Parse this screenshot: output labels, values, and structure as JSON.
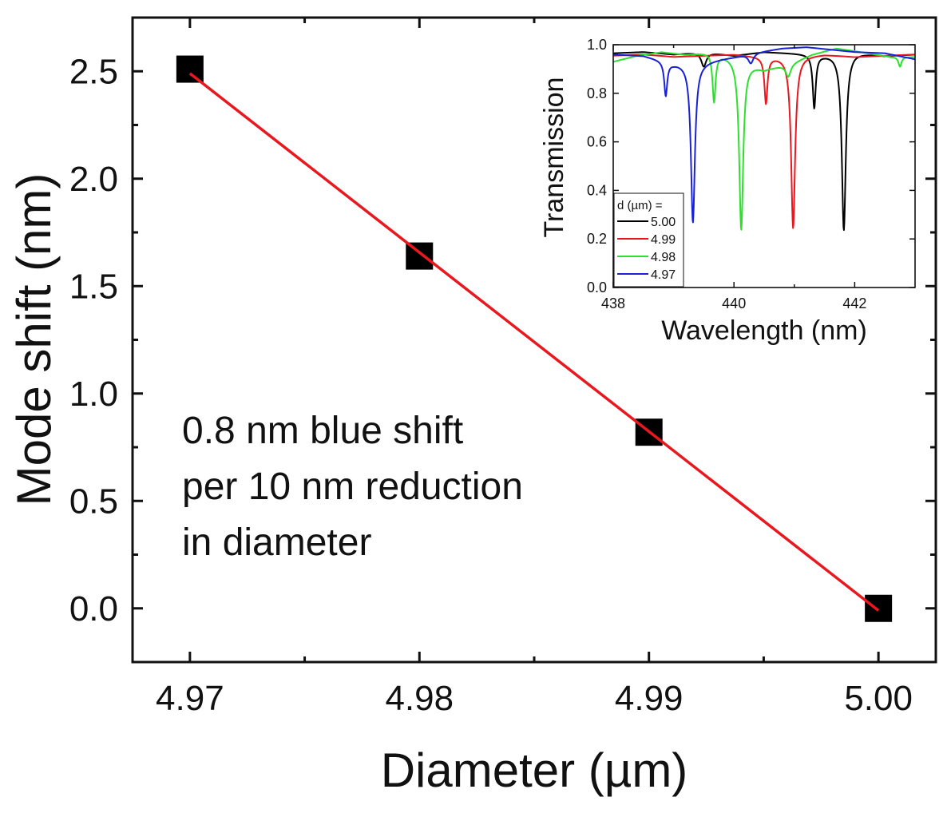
{
  "chart_data": [
    {
      "type": "scatter",
      "name": "main",
      "xlabel": "Diameter (µm)",
      "ylabel": "Mode shift (nm)",
      "xlim": [
        4.9675,
        5.0025
      ],
      "ylim": [
        -0.25,
        2.75
      ],
      "xticks": [
        4.97,
        4.98,
        4.99,
        5.0
      ],
      "xtick_labels": [
        "4.97",
        "4.98",
        "4.99",
        "5.00"
      ],
      "yticks": [
        0.0,
        0.5,
        1.0,
        1.5,
        2.0,
        2.5
      ],
      "ytick_labels": [
        "0.0",
        "0.5",
        "1.0",
        "1.5",
        "2.0",
        "2.5"
      ],
      "x": [
        4.97,
        4.98,
        4.99,
        5.0
      ],
      "y": [
        2.51,
        1.64,
        0.82,
        0.0
      ],
      "fit": {
        "x": [
          4.97,
          5.0
        ],
        "y": [
          2.49,
          -0.01
        ],
        "color": "#e8181e"
      },
      "marker_color": "#000000",
      "annotation": [
        "0.8 nm blue shift",
        "per 10 nm reduction",
        "in diameter"
      ]
    },
    {
      "type": "line",
      "name": "inset",
      "xlabel": "Wavelength (nm)",
      "ylabel": "Transmission",
      "xlim": [
        438,
        443
      ],
      "ylim": [
        0,
        1
      ],
      "xticks": [
        438,
        440,
        442
      ],
      "xtick_labels": [
        "438",
        "440",
        "442"
      ],
      "yticks": [
        0,
        0.2,
        0.4,
        0.6,
        0.8,
        1.0
      ],
      "ytick_labels": [
        "0.0",
        "0.2",
        "0.4",
        "0.6",
        "0.8",
        "1.0"
      ],
      "legend_title": "d (µm) =",
      "legend_position": "bottom-left",
      "series": [
        {
          "name": "5.00",
          "color": "#000000",
          "base": [
            [
              438,
              0.965
            ],
            [
              438.5,
              0.97
            ],
            [
              439,
              0.96
            ],
            [
              439.5,
              0.97
            ],
            [
              440,
              0.955
            ],
            [
              440.5,
              0.97
            ],
            [
              441,
              0.965
            ],
            [
              441.5,
              0.96
            ],
            [
              442,
              0.97
            ],
            [
              442.5,
              0.955
            ],
            [
              443,
              0.96
            ]
          ],
          "dips": [
            [
              441.82,
              0.73,
              0.04
            ],
            [
              441.33,
              0.22,
              0.03
            ],
            [
              439.5,
              0.06,
              0.05
            ]
          ]
        },
        {
          "name": "4.99",
          "color": "#e8181e",
          "base": [
            [
              438,
              0.955
            ],
            [
              438.5,
              0.96
            ],
            [
              439,
              0.95
            ],
            [
              439.5,
              0.955
            ],
            [
              440,
              0.96
            ],
            [
              440.5,
              0.95
            ],
            [
              441,
              0.955
            ],
            [
              441.5,
              0.96
            ],
            [
              442,
              0.95
            ],
            [
              442.5,
              0.955
            ],
            [
              443,
              0.96
            ]
          ],
          "dips": [
            [
              440.98,
              0.71,
              0.04
            ],
            [
              440.53,
              0.19,
              0.03
            ]
          ]
        },
        {
          "name": "4.98",
          "color": "#2ee02e",
          "base": [
            [
              438,
              0.93
            ],
            [
              438.4,
              0.955
            ],
            [
              438.8,
              0.97
            ],
            [
              439.2,
              0.96
            ],
            [
              439.6,
              0.97
            ],
            [
              440,
              0.95
            ],
            [
              440.5,
              0.9
            ],
            [
              440.9,
              0.92
            ],
            [
              441.3,
              0.96
            ],
            [
              441.7,
              0.985
            ],
            [
              442.1,
              0.97
            ],
            [
              442.6,
              0.95
            ],
            [
              443,
              0.95
            ]
          ],
          "dips": [
            [
              440.12,
              0.7,
              0.04
            ],
            [
              439.67,
              0.2,
              0.03
            ],
            [
              440.9,
              0.05,
              0.05
            ],
            [
              442.75,
              0.04,
              0.03
            ]
          ]
        },
        {
          "name": "4.97",
          "color": "#1a22d6",
          "base": [
            [
              438,
              0.96
            ],
            [
              438.5,
              0.955
            ],
            [
              439,
              0.925
            ],
            [
              439.5,
              0.93
            ],
            [
              440,
              0.95
            ],
            [
              440.4,
              0.97
            ],
            [
              440.8,
              0.985
            ],
            [
              441.2,
              0.99
            ],
            [
              441.6,
              0.98
            ],
            [
              442,
              0.97
            ],
            [
              442.5,
              0.965
            ],
            [
              443,
              0.94
            ]
          ],
          "dips": [
            [
              439.32,
              0.66,
              0.04
            ],
            [
              438.87,
              0.14,
              0.03
            ],
            [
              440.28,
              0.04,
              0.05
            ]
          ]
        }
      ]
    }
  ]
}
